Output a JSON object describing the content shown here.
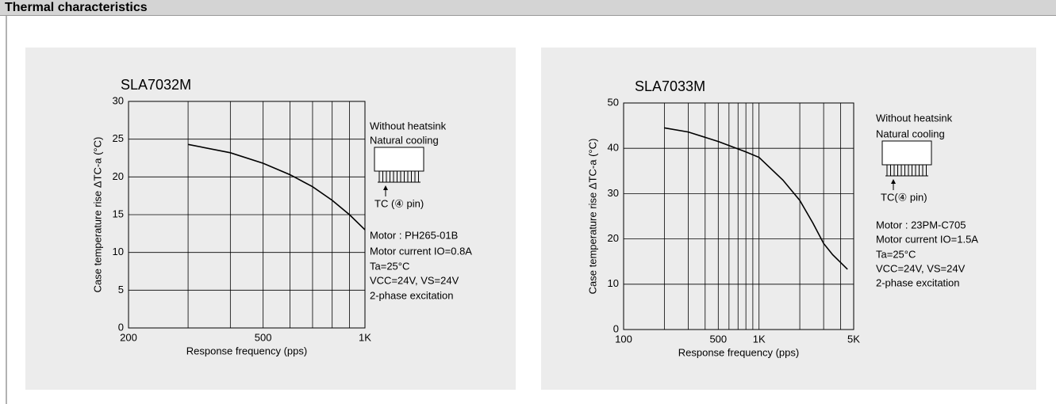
{
  "header": {
    "title": "Thermal characteristics"
  },
  "chart_data": [
    {
      "type": "line",
      "title": "SLA7032M",
      "x_label": "Response frequency (pps)",
      "y_label": "Case temperature rise ΔTC-a (°C)",
      "x": [
        300,
        400,
        500,
        600,
        700,
        800,
        900,
        1000
      ],
      "values": [
        24.3,
        23.2,
        21.8,
        20.3,
        18.7,
        16.9,
        15.0,
        13.0
      ],
      "color": "#000000",
      "xlim": [
        200,
        1000
      ],
      "xscale": "log",
      "xticks": [
        200,
        500,
        {
          "value": 1000,
          "label": "1K"
        }
      ],
      "xminor": [
        300,
        400,
        600,
        700,
        800,
        900
      ],
      "ylim": [
        0,
        30
      ],
      "yticks": [
        0,
        5,
        10,
        15,
        20,
        25,
        30
      ],
      "grid": true,
      "annotations": [
        "Without heatsink",
        "Natural cooling",
        "TC (④ pin)",
        "Motor :  PH265-01B",
        "Motor current IO=0.8A",
        "Ta=25°C",
        "VCC=24V, VS=24V",
        "2-phase excitation"
      ]
    },
    {
      "type": "line",
      "title": "SLA7033M",
      "x_label": "Response frequency (pps)",
      "y_label": "Case temperature rise ΔTC-a (°C)",
      "x": [
        200,
        300,
        500,
        800,
        1000,
        1500,
        2000,
        2500,
        3000,
        3500,
        4000,
        4500
      ],
      "values": [
        44.5,
        43.6,
        41.5,
        39.2,
        38.0,
        33.0,
        28.5,
        23.5,
        19.0,
        16.5,
        14.8,
        13.3
      ],
      "color": "#000000",
      "xlim": [
        100,
        5000
      ],
      "xscale": "log",
      "xticks": [
        100,
        500,
        {
          "value": 1000,
          "label": "1K"
        },
        {
          "value": 5000,
          "label": "5K"
        }
      ],
      "xminor": [
        200,
        300,
        400,
        600,
        700,
        800,
        900,
        2000,
        3000,
        4000
      ],
      "ylim": [
        0,
        50
      ],
      "yticks": [
        0,
        10,
        20,
        30,
        40,
        50
      ],
      "grid": true,
      "annotations": [
        "Without heatsink",
        "Natural cooling",
        "TC(④ pin)",
        "Motor : 23PM-C705",
        "Motor current IO=1.5A",
        "Ta=25°C",
        "VCC=24V, VS=24V",
        "2-phase excitation"
      ]
    }
  ]
}
